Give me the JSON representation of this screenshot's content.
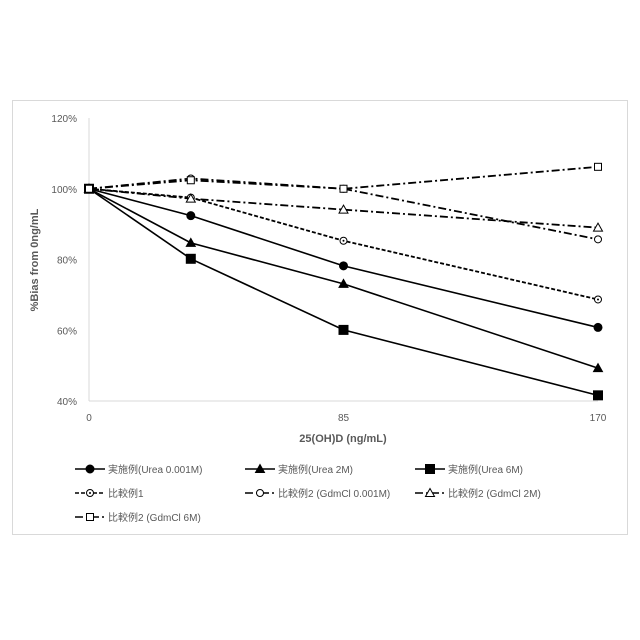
{
  "chart_data": {
    "type": "line",
    "title": "",
    "xlabel": "25(OH)D (ng/mL)",
    "ylabel": "%Bias from 0ng/mL",
    "x": [
      0,
      34,
      85,
      170
    ],
    "xticks": [
      "0",
      "85",
      "170"
    ],
    "xtick_values": [
      0,
      85,
      170
    ],
    "xlim": [
      0,
      170
    ],
    "ylim": [
      40,
      120
    ],
    "yticks": [
      "40%",
      "60%",
      "80%",
      "100%",
      "120%"
    ],
    "ytick_values": [
      40,
      60,
      80,
      100,
      120
    ],
    "grid": false,
    "legend_position": "bottom",
    "series": [
      {
        "name": "実施例(Urea 0.001M)",
        "values": [
          100,
          92.4,
          78.2,
          60.8
        ],
        "marker": "circle-filled",
        "dash": "solid"
      },
      {
        "name": "実施例(Urea 2M)",
        "values": [
          100,
          84.7,
          73.1,
          49.3
        ],
        "marker": "triangle-filled",
        "dash": "solid"
      },
      {
        "name": "実施例(Urea 6M)",
        "values": [
          100,
          80.2,
          60.1,
          41.6
        ],
        "marker": "square-filled",
        "dash": "solid"
      },
      {
        "name": "比較例1",
        "values": [
          100,
          97.5,
          85.3,
          68.7
        ],
        "marker": "circle-dot",
        "dash": "dashed"
      },
      {
        "name": "比較例2 (GdmCl 0.001M)",
        "values": [
          100,
          102.9,
          100,
          85.7
        ],
        "marker": "circle-open",
        "dash": "dashdot"
      },
      {
        "name": "比較例2 (GdmCl 2M)",
        "values": [
          100,
          97.2,
          94.1,
          89
        ],
        "marker": "triangle-open",
        "dash": "dashdot"
      },
      {
        "name": "比較例2 (GdmCl 6M)",
        "values": [
          100,
          102.4,
          100,
          106.2
        ],
        "marker": "square-open",
        "dash": "dashdot"
      }
    ]
  }
}
